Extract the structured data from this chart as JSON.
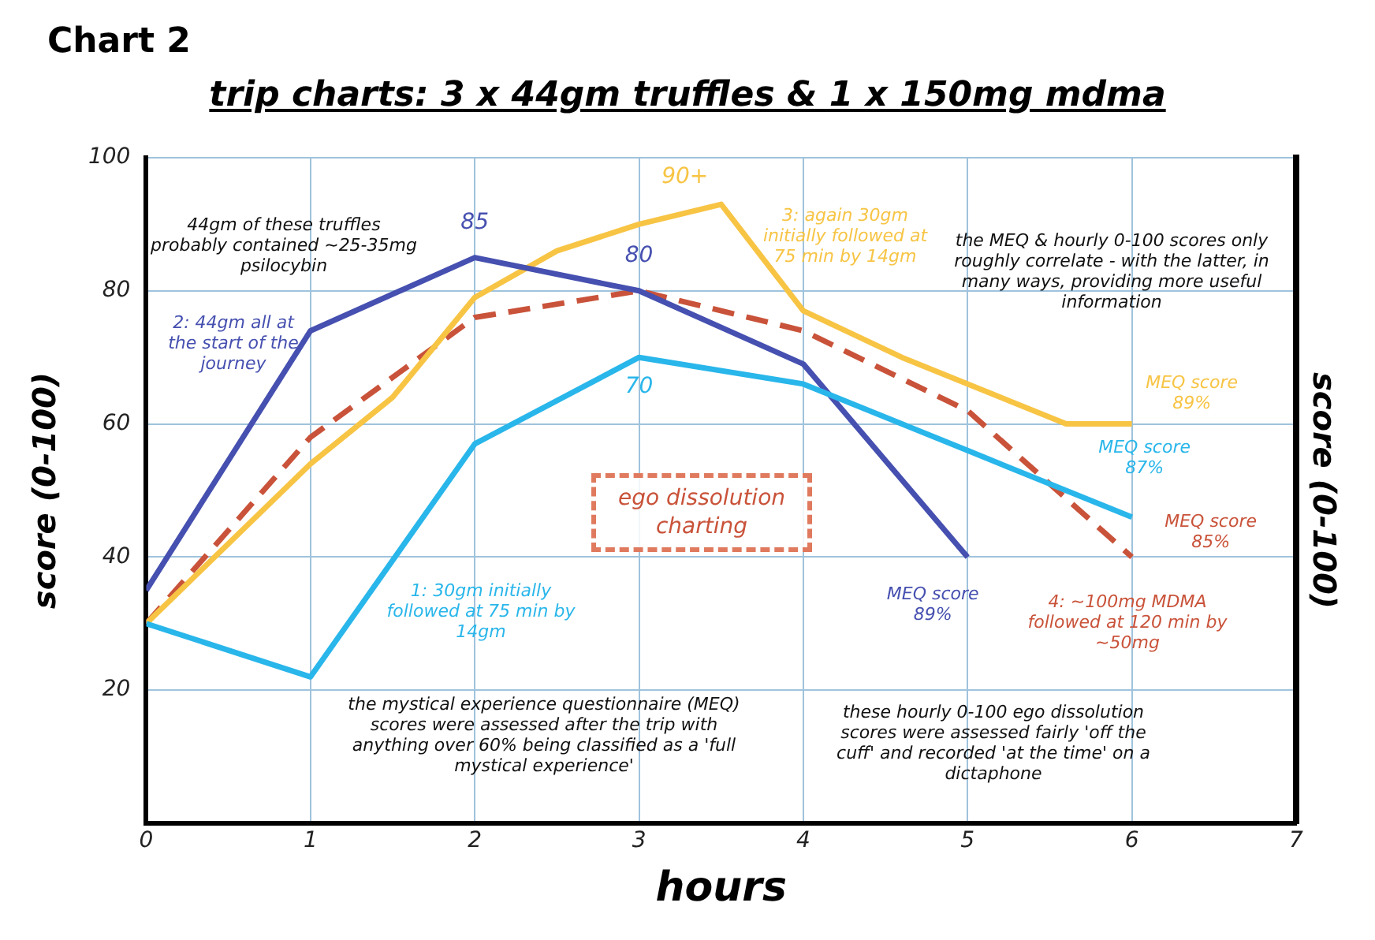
{
  "chart_data": {
    "type": "line",
    "title": "trip charts: 3 x 44gm truffles & 1 x 150mg mdma",
    "subtitle": "Chart 2",
    "xlabel": "hours",
    "ylabel": "score (0-100)",
    "y2label": "score (0-100)",
    "xlim": [
      0,
      7
    ],
    "xticks": [
      0,
      1,
      2,
      3,
      4,
      5,
      6,
      7
    ],
    "ylim": [
      0,
      100
    ],
    "yticks": [
      20,
      40,
      60,
      80,
      100
    ],
    "grid": true,
    "legend": false,
    "marker": "none",
    "series": [
      {
        "name": "1: 30gm initially followed at 75 min by 14gm",
        "color": "#29b6ea",
        "x": [
          0,
          1,
          2,
          3,
          4,
          5,
          6
        ],
        "values": [
          30,
          22,
          57,
          70,
          66,
          56,
          46
        ]
      },
      {
        "name": "2: 44gm all at the start of the journey",
        "color": "#4650b0",
        "x": [
          0,
          1,
          2,
          3,
          4,
          5
        ],
        "values": [
          35,
          74,
          85,
          80,
          69,
          40
        ]
      },
      {
        "name": "3: again 30gm initially followed at 75 min by 14gm",
        "color": "#f7c444",
        "x": [
          0,
          1,
          1.5,
          2,
          2.5,
          3,
          3.5,
          4,
          4.6,
          5.6,
          6
        ],
        "values": [
          30,
          54,
          64,
          79,
          86,
          90,
          93,
          77,
          70,
          60,
          60
        ]
      },
      {
        "name": "4: ~100mg MDMA followed at 120 min by ~50mg",
        "color": "#c9533a",
        "line_style": "dashed",
        "x": [
          0,
          1,
          2,
          3,
          4,
          5,
          6
        ],
        "values": [
          30,
          58,
          76,
          80,
          74,
          62,
          40
        ]
      }
    ],
    "annotations": [
      "44gm of these truffles probably contained ~25-35mg psilocybin",
      "the MEQ & hourly 0-100 scores only roughly correlate - with the latter, in many ways, providing more useful information",
      "the mystical experience questionnaire (MEQ) scores were assessed after the trip with anything over 60% being classified as a 'full mystical experience'",
      "these hourly 0-100 ego dissolution scores were assessed fairly 'off the cuff' and recorded 'at the time' on a dictaphone",
      "ego dissolution charting",
      {
        "text": "85",
        "x": 2,
        "y": 85
      },
      {
        "text": "80",
        "x": 3,
        "y": 80
      },
      {
        "text": "90+",
        "x": 3.5,
        "y": 93
      },
      {
        "text": "70",
        "x": 3,
        "y": 70
      },
      {
        "text": "MEQ score 89%",
        "x": 5,
        "y": 40
      },
      {
        "text": "MEQ score 87%",
        "x": 6,
        "y": 46
      },
      {
        "text": "MEQ score 85%",
        "x": 6,
        "y": 40
      },
      {
        "text": "MEQ score 89%",
        "x": 6,
        "y": 60
      }
    ]
  }
}
